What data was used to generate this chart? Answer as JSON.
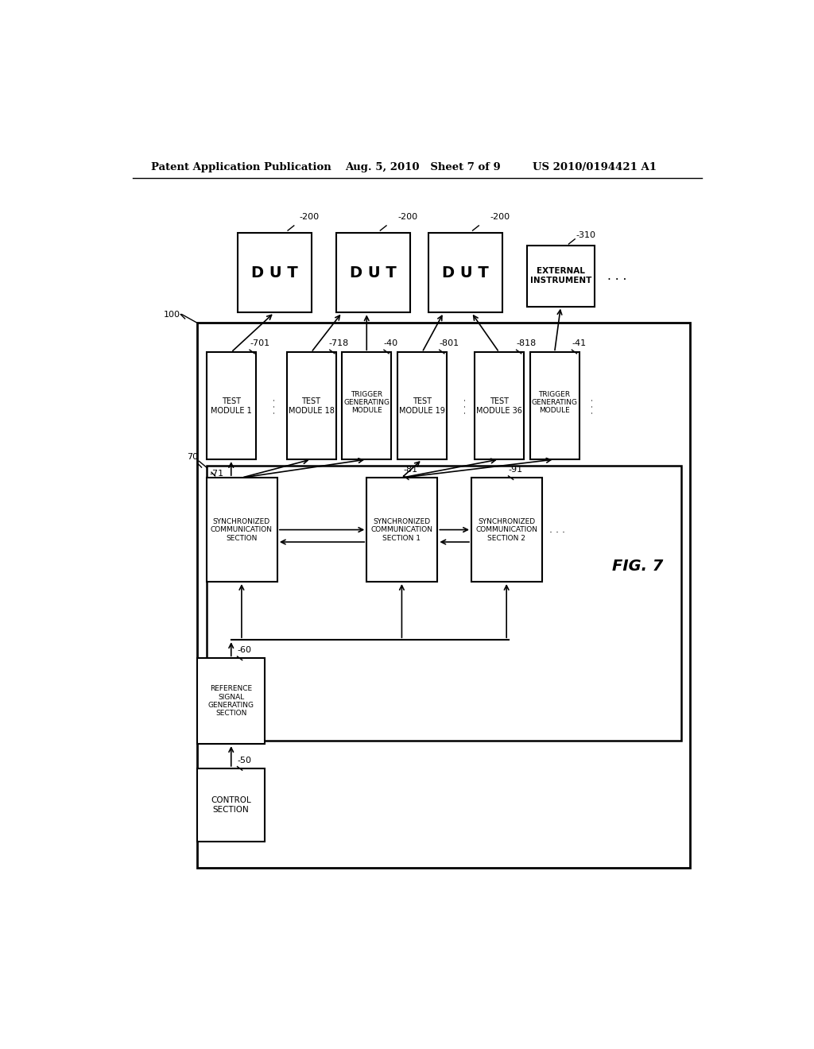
{
  "bg_color": "#ffffff",
  "header_left": "Patent Application Publication",
  "header_mid": "Aug. 5, 2010   Sheet 7 of 9",
  "header_right": "US 2010/0194421 A1",
  "fig_label": "FIG. 7"
}
